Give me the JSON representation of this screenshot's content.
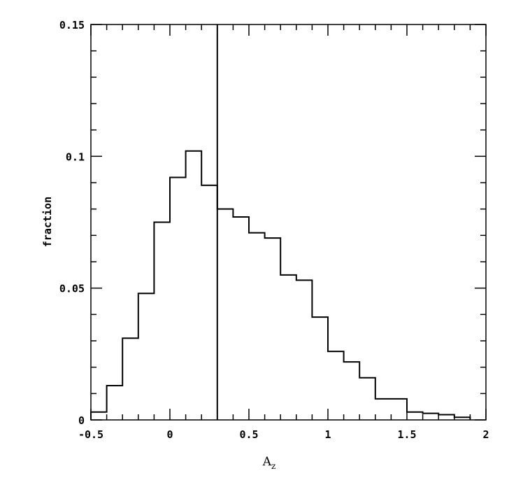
{
  "chart_data": {
    "type": "histogram",
    "xlabel": "A",
    "xlabel_subscript": "z",
    "ylabel": "fraction",
    "xlim": [
      -0.5,
      2
    ],
    "ylim": [
      0,
      0.15
    ],
    "x_ticks": [
      "-0.5",
      "0",
      "0.5",
      "1",
      "1.5",
      "2"
    ],
    "y_ticks": [
      "0",
      "0.05",
      "0.1",
      "0.15"
    ],
    "bin_width": 0.1,
    "bins": [
      {
        "x0": -0.5,
        "x1": -0.4,
        "y": 0.003
      },
      {
        "x0": -0.4,
        "x1": -0.3,
        "y": 0.013
      },
      {
        "x0": -0.3,
        "x1": -0.2,
        "y": 0.031
      },
      {
        "x0": -0.2,
        "x1": -0.1,
        "y": 0.048
      },
      {
        "x0": -0.1,
        "x1": 0.0,
        "y": 0.075
      },
      {
        "x0": 0.0,
        "x1": 0.1,
        "y": 0.092
      },
      {
        "x0": 0.1,
        "x1": 0.2,
        "y": 0.102
      },
      {
        "x0": 0.2,
        "x1": 0.3,
        "y": 0.089
      },
      {
        "x0": 0.3,
        "x1": 0.4,
        "y": 0.08
      },
      {
        "x0": 0.4,
        "x1": 0.5,
        "y": 0.077
      },
      {
        "x0": 0.5,
        "x1": 0.6,
        "y": 0.071
      },
      {
        "x0": 0.6,
        "x1": 0.7,
        "y": 0.069
      },
      {
        "x0": 0.7,
        "x1": 0.8,
        "y": 0.055
      },
      {
        "x0": 0.8,
        "x1": 0.9,
        "y": 0.053
      },
      {
        "x0": 0.9,
        "x1": 1.0,
        "y": 0.039
      },
      {
        "x0": 1.0,
        "x1": 1.1,
        "y": 0.026
      },
      {
        "x0": 1.1,
        "x1": 1.2,
        "y": 0.022
      },
      {
        "x0": 1.2,
        "x1": 1.3,
        "y": 0.016
      },
      {
        "x0": 1.3,
        "x1": 1.4,
        "y": 0.008
      },
      {
        "x0": 1.4,
        "x1": 1.5,
        "y": 0.008
      },
      {
        "x0": 1.5,
        "x1": 1.6,
        "y": 0.003
      },
      {
        "x0": 1.6,
        "x1": 1.7,
        "y": 0.0025
      },
      {
        "x0": 1.7,
        "x1": 1.8,
        "y": 0.002
      },
      {
        "x0": 1.8,
        "x1": 1.9,
        "y": 0.001
      }
    ],
    "vertical_line_x": 0.3,
    "grid": false,
    "line_color": "#000000"
  }
}
